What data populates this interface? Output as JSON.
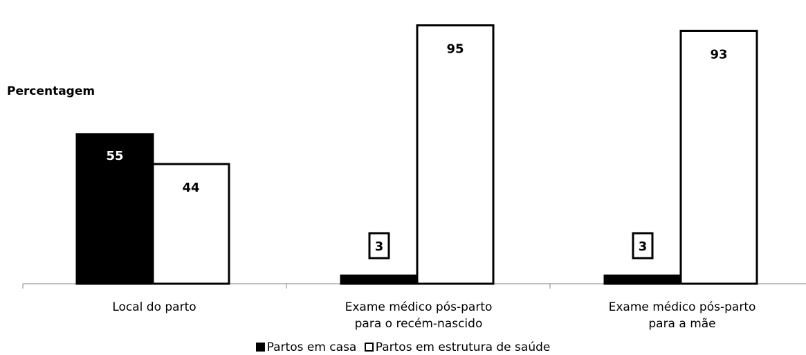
{
  "chart_data": {
    "type": "bar",
    "ylabel": "Percentagem",
    "xlabel": "",
    "categories": [
      "Local do parto",
      "Exame médico pós-parto\npara o recém-nascido",
      "Exame médico pós-parto\npara a mãe"
    ],
    "series": [
      {
        "name": "Partos em casa",
        "values": [
          55,
          3,
          3
        ],
        "color": "#000000"
      },
      {
        "name": "Partos em estrutura de saúde",
        "values": [
          44,
          95,
          93
        ],
        "color": "#ffffff"
      }
    ],
    "ylim": [
      0,
      100
    ],
    "grid": false,
    "legend_position": "bottom",
    "data_labels": [
      [
        "55",
        "3",
        "3"
      ],
      [
        "44",
        "95",
        "93"
      ]
    ]
  }
}
